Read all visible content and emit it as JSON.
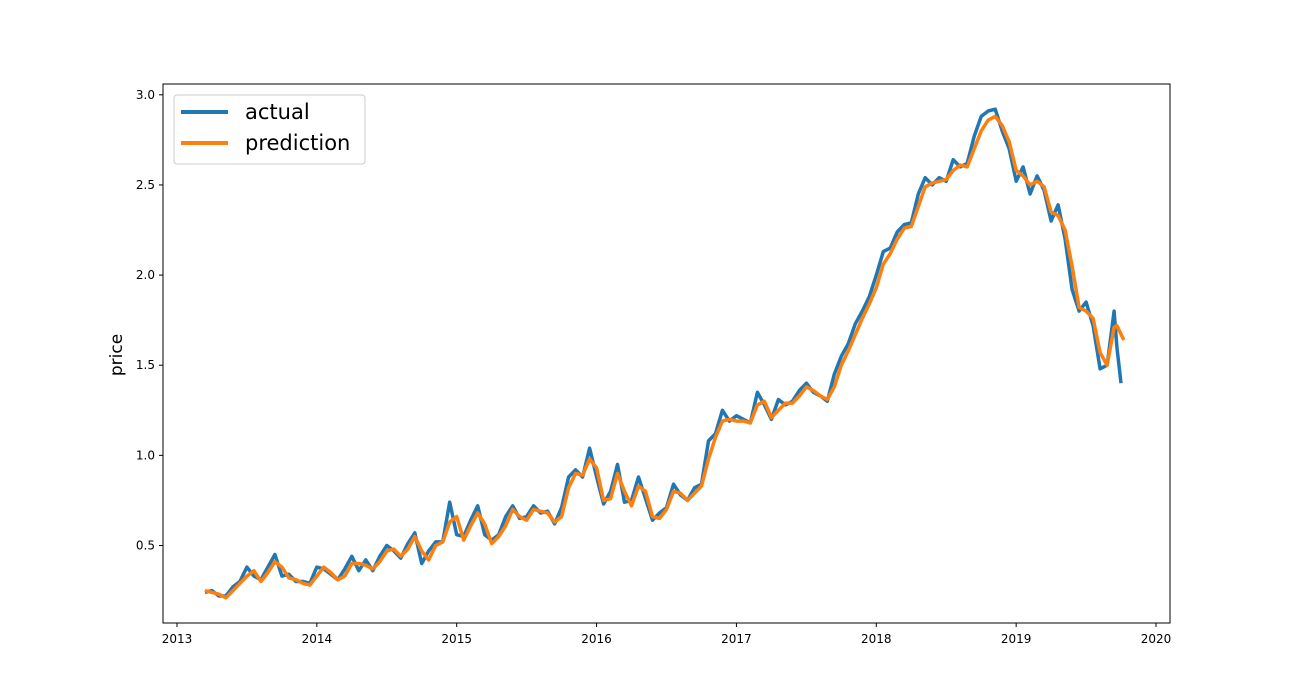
{
  "chart_data": {
    "type": "line",
    "title": "",
    "xlabel": "",
    "ylabel": "price",
    "xlim": [
      2012.9,
      2020.1
    ],
    "ylim": [
      0.07,
      3.06
    ],
    "x_ticks": [
      2013,
      2014,
      2015,
      2016,
      2017,
      2018,
      2019,
      2020
    ],
    "x_tick_labels": [
      "2013",
      "2014",
      "2015",
      "2016",
      "2017",
      "2018",
      "2019",
      "2020"
    ],
    "y_ticks": [
      0.5,
      1.0,
      1.5,
      2.0,
      2.5,
      3.0
    ],
    "y_tick_labels": [
      "0.5",
      "1.0",
      "1.5",
      "2.0",
      "2.5",
      "3.0"
    ],
    "grid": false,
    "legend_position": "top-left",
    "series": [
      {
        "name": "actual",
        "color": "#1f77b4",
        "x": [
          2013.2,
          2013.25,
          2013.3,
          2013.35,
          2013.4,
          2013.45,
          2013.5,
          2013.55,
          2013.6,
          2013.65,
          2013.7,
          2013.75,
          2013.8,
          2013.85,
          2013.9,
          2013.95,
          2014.0,
          2014.05,
          2014.1,
          2014.15,
          2014.2,
          2014.25,
          2014.3,
          2014.35,
          2014.4,
          2014.45,
          2014.5,
          2014.55,
          2014.6,
          2014.65,
          2014.7,
          2014.75,
          2014.8,
          2014.85,
          2014.9,
          2014.95,
          2015.0,
          2015.05,
          2015.1,
          2015.15,
          2015.2,
          2015.25,
          2015.3,
          2015.35,
          2015.4,
          2015.45,
          2015.5,
          2015.55,
          2015.6,
          2015.65,
          2015.7,
          2015.75,
          2015.8,
          2015.85,
          2015.9,
          2015.95,
          2016.0,
          2016.05,
          2016.1,
          2016.15,
          2016.2,
          2016.25,
          2016.3,
          2016.35,
          2016.4,
          2016.45,
          2016.5,
          2016.55,
          2016.6,
          2016.65,
          2016.7,
          2016.75,
          2016.8,
          2016.85,
          2016.9,
          2016.95,
          2017.0,
          2017.05,
          2017.1,
          2017.15,
          2017.2,
          2017.25,
          2017.3,
          2017.35,
          2017.4,
          2017.45,
          2017.5,
          2017.55,
          2017.6,
          2017.65,
          2017.7,
          2017.75,
          2017.8,
          2017.85,
          2017.9,
          2017.95,
          2018.0,
          2018.05,
          2018.1,
          2018.15,
          2018.2,
          2018.25,
          2018.3,
          2018.35,
          2018.4,
          2018.45,
          2018.5,
          2018.55,
          2018.6,
          2018.65,
          2018.7,
          2018.75,
          2018.8,
          2018.85,
          2018.9,
          2018.95,
          2019.0,
          2019.05,
          2019.1,
          2019.15,
          2019.2,
          2019.25,
          2019.3,
          2019.35,
          2019.4,
          2019.45,
          2019.5,
          2019.55,
          2019.6,
          2019.65,
          2019.7,
          2019.72,
          2019.75
        ],
        "values": [
          0.24,
          0.25,
          0.22,
          0.22,
          0.27,
          0.3,
          0.38,
          0.33,
          0.31,
          0.38,
          0.45,
          0.33,
          0.34,
          0.3,
          0.3,
          0.29,
          0.38,
          0.37,
          0.34,
          0.31,
          0.37,
          0.44,
          0.36,
          0.42,
          0.36,
          0.44,
          0.5,
          0.47,
          0.43,
          0.51,
          0.57,
          0.4,
          0.47,
          0.52,
          0.52,
          0.74,
          0.56,
          0.55,
          0.64,
          0.72,
          0.56,
          0.53,
          0.56,
          0.66,
          0.72,
          0.65,
          0.66,
          0.72,
          0.68,
          0.69,
          0.62,
          0.71,
          0.88,
          0.92,
          0.88,
          1.04,
          0.88,
          0.73,
          0.8,
          0.95,
          0.74,
          0.75,
          0.88,
          0.76,
          0.64,
          0.68,
          0.71,
          0.84,
          0.78,
          0.75,
          0.82,
          0.84,
          1.08,
          1.12,
          1.25,
          1.19,
          1.22,
          1.2,
          1.18,
          1.35,
          1.28,
          1.2,
          1.31,
          1.28,
          1.3,
          1.36,
          1.4,
          1.35,
          1.33,
          1.3,
          1.45,
          1.55,
          1.62,
          1.73,
          1.8,
          1.88,
          2.0,
          2.13,
          2.15,
          2.24,
          2.28,
          2.29,
          2.45,
          2.54,
          2.5,
          2.54,
          2.52,
          2.64,
          2.6,
          2.62,
          2.77,
          2.88,
          2.91,
          2.92,
          2.8,
          2.7,
          2.52,
          2.6,
          2.45,
          2.55,
          2.47,
          2.3,
          2.39,
          2.2,
          1.92,
          1.8,
          1.85,
          1.72,
          1.48,
          1.5,
          1.8,
          1.6,
          1.4
        ]
      },
      {
        "name": "prediction",
        "color": "#ff7f0e",
        "x": [
          2013.2,
          2013.25,
          2013.3,
          2013.35,
          2013.4,
          2013.45,
          2013.5,
          2013.55,
          2013.6,
          2013.65,
          2013.7,
          2013.75,
          2013.8,
          2013.85,
          2013.9,
          2013.95,
          2014.0,
          2014.05,
          2014.1,
          2014.15,
          2014.2,
          2014.25,
          2014.3,
          2014.35,
          2014.4,
          2014.45,
          2014.5,
          2014.55,
          2014.6,
          2014.65,
          2014.7,
          2014.75,
          2014.8,
          2014.85,
          2014.9,
          2014.95,
          2015.0,
          2015.05,
          2015.1,
          2015.15,
          2015.2,
          2015.25,
          2015.3,
          2015.35,
          2015.4,
          2015.45,
          2015.5,
          2015.55,
          2015.6,
          2015.65,
          2015.7,
          2015.75,
          2015.8,
          2015.85,
          2015.9,
          2015.95,
          2016.0,
          2016.05,
          2016.1,
          2016.15,
          2016.2,
          2016.25,
          2016.3,
          2016.35,
          2016.4,
          2016.45,
          2016.5,
          2016.55,
          2016.6,
          2016.65,
          2016.7,
          2016.75,
          2016.8,
          2016.85,
          2016.9,
          2016.95,
          2017.0,
          2017.05,
          2017.1,
          2017.15,
          2017.2,
          2017.25,
          2017.3,
          2017.35,
          2017.4,
          2017.45,
          2017.5,
          2017.55,
          2017.6,
          2017.65,
          2017.7,
          2017.75,
          2017.8,
          2017.85,
          2017.9,
          2017.95,
          2018.0,
          2018.05,
          2018.1,
          2018.15,
          2018.2,
          2018.25,
          2018.3,
          2018.35,
          2018.4,
          2018.45,
          2018.5,
          2018.55,
          2018.6,
          2018.65,
          2018.7,
          2018.75,
          2018.8,
          2018.85,
          2018.9,
          2018.95,
          2019.0,
          2019.05,
          2019.1,
          2019.15,
          2019.2,
          2019.25,
          2019.3,
          2019.35,
          2019.4,
          2019.45,
          2019.5,
          2019.55,
          2019.6,
          2019.65,
          2019.7,
          2019.72,
          2019.77
        ],
        "values": [
          0.25,
          0.24,
          0.23,
          0.21,
          0.25,
          0.29,
          0.33,
          0.36,
          0.3,
          0.35,
          0.41,
          0.38,
          0.32,
          0.31,
          0.29,
          0.28,
          0.33,
          0.38,
          0.35,
          0.31,
          0.33,
          0.4,
          0.4,
          0.39,
          0.37,
          0.41,
          0.47,
          0.48,
          0.44,
          0.48,
          0.55,
          0.47,
          0.42,
          0.5,
          0.52,
          0.63,
          0.66,
          0.53,
          0.61,
          0.68,
          0.62,
          0.51,
          0.55,
          0.61,
          0.7,
          0.66,
          0.64,
          0.7,
          0.69,
          0.68,
          0.63,
          0.66,
          0.82,
          0.9,
          0.89,
          0.98,
          0.93,
          0.75,
          0.76,
          0.9,
          0.8,
          0.72,
          0.83,
          0.8,
          0.66,
          0.65,
          0.7,
          0.8,
          0.79,
          0.75,
          0.79,
          0.83,
          0.98,
          1.1,
          1.19,
          1.2,
          1.19,
          1.19,
          1.18,
          1.28,
          1.3,
          1.21,
          1.25,
          1.29,
          1.29,
          1.33,
          1.38,
          1.36,
          1.33,
          1.31,
          1.38,
          1.5,
          1.58,
          1.67,
          1.76,
          1.84,
          1.93,
          2.06,
          2.12,
          2.2,
          2.26,
          2.27,
          2.38,
          2.49,
          2.51,
          2.52,
          2.53,
          2.58,
          2.61,
          2.6,
          2.7,
          2.8,
          2.86,
          2.88,
          2.83,
          2.74,
          2.58,
          2.55,
          2.5,
          2.52,
          2.49,
          2.35,
          2.33,
          2.25,
          2.05,
          1.82,
          1.8,
          1.76,
          1.57,
          1.5,
          1.71,
          1.72,
          1.64
        ]
      }
    ]
  }
}
